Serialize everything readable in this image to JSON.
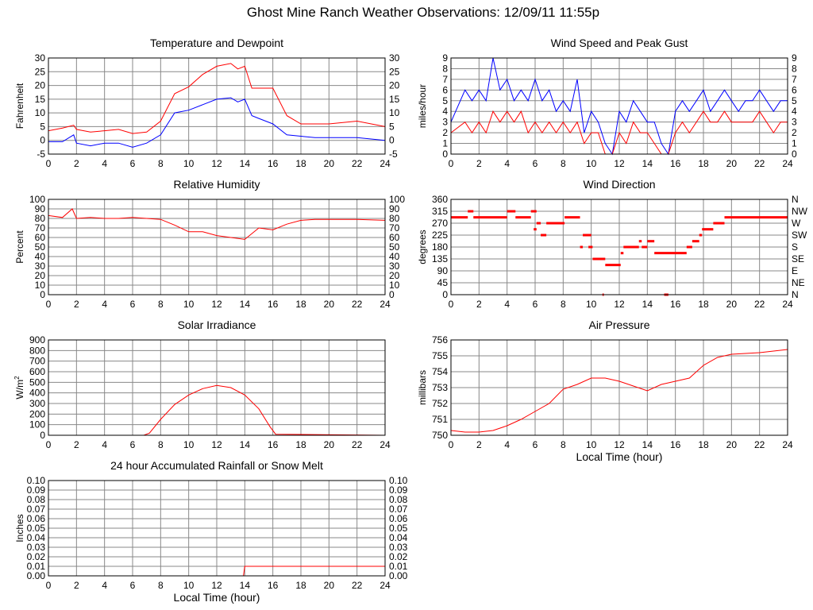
{
  "page": {
    "title": "Ghost Mine Ranch Weather Observations: 12/09/11 11:55p"
  },
  "colors": {
    "red": "#ff0000",
    "blue": "#0000ff",
    "grid": "#888888",
    "frame": "#000000"
  },
  "chart_data": [
    {
      "id": "temp",
      "type": "line",
      "title": "Temperature and Dewpoint",
      "xlabel": "",
      "ylabel": "Fahrenheit",
      "xlim": [
        0,
        24
      ],
      "ylim": [
        -5,
        30
      ],
      "xticks": [
        "0",
        "2",
        "4",
        "6",
        "8",
        "10",
        "12",
        "14",
        "16",
        "18",
        "20",
        "22",
        "24"
      ],
      "yticks": [
        "-5",
        "0",
        "5",
        "10",
        "15",
        "20",
        "25",
        "30"
      ],
      "yticks_right": [
        "-5",
        "0",
        "5",
        "10",
        "15",
        "20",
        "25",
        "30"
      ],
      "x": [
        0,
        1,
        1.8,
        2,
        3,
        4,
        5,
        6,
        7,
        8,
        9,
        10,
        11,
        12,
        13,
        13.5,
        14,
        14.5,
        15,
        16,
        17,
        18,
        19,
        20,
        22,
        24
      ],
      "series": [
        {
          "color": "red",
          "values": [
            3.5,
            4.5,
            5.5,
            4,
            3,
            3.5,
            4,
            2.5,
            3,
            7,
            17,
            19.5,
            24,
            27,
            28,
            26,
            27,
            19,
            19,
            19,
            9,
            6,
            6,
            6,
            7,
            5
          ]
        },
        {
          "color": "blue",
          "values": [
            -0.5,
            -0.5,
            2,
            -1,
            -2,
            -1,
            -1,
            -2.5,
            -1,
            2,
            10,
            11,
            13,
            15,
            15.5,
            14,
            15,
            9,
            8,
            6,
            2,
            1.5,
            1,
            1,
            1,
            0
          ]
        }
      ]
    },
    {
      "id": "wind",
      "type": "line",
      "title": "Wind Speed and Peak Gust",
      "xlabel": "",
      "ylabel": "miles/hour",
      "xlim": [
        0,
        24
      ],
      "ylim": [
        0,
        9
      ],
      "xticks": [
        "0",
        "2",
        "4",
        "6",
        "8",
        "10",
        "12",
        "14",
        "16",
        "18",
        "20",
        "22",
        "24"
      ],
      "yticks": [
        "0",
        "1",
        "2",
        "3",
        "4",
        "5",
        "6",
        "7",
        "8",
        "9"
      ],
      "yticks_right": [
        "0",
        "1",
        "2",
        "3",
        "4",
        "5",
        "6",
        "7",
        "8",
        "9"
      ],
      "x": [
        0,
        1,
        1.5,
        2,
        2.5,
        3,
        3.5,
        4,
        4.5,
        5,
        5.5,
        6,
        6.5,
        7,
        7.5,
        8,
        8.5,
        9,
        9.5,
        10,
        10.5,
        11,
        11.5,
        12,
        12.5,
        13,
        13.5,
        14,
        14.5,
        15,
        15.5,
        16,
        16.5,
        17,
        17.5,
        18,
        18.5,
        19,
        19.5,
        20,
        20.5,
        21,
        21.5,
        22,
        22.5,
        23,
        23.5,
        24
      ],
      "series": [
        {
          "color": "blue",
          "values": [
            3,
            6,
            5,
            6,
            5,
            9,
            6,
            7,
            5,
            6,
            5,
            7,
            5,
            6,
            4,
            5,
            4,
            7,
            2,
            4,
            3,
            1,
            0,
            4,
            3,
            5,
            4,
            3,
            3,
            1,
            0,
            4,
            5,
            4,
            5,
            6,
            4,
            5,
            6,
            5,
            4,
            5,
            5,
            6,
            5,
            4,
            5,
            5
          ]
        },
        {
          "color": "red",
          "values": [
            2,
            3,
            2,
            3,
            2,
            4,
            3,
            4,
            3,
            4,
            2,
            3,
            2,
            3,
            2,
            3,
            2,
            3,
            1,
            2,
            2,
            0,
            0,
            2,
            1,
            3,
            2,
            2,
            1,
            0,
            0,
            2,
            3,
            2,
            3,
            4,
            3,
            3,
            4,
            3,
            3,
            3,
            3,
            4,
            3,
            2,
            3,
            3
          ]
        }
      ]
    },
    {
      "id": "rh",
      "type": "line",
      "title": "Relative Humidity",
      "xlabel": "",
      "ylabel": "Percent",
      "xlim": [
        0,
        24
      ],
      "ylim": [
        0,
        100
      ],
      "xticks": [
        "0",
        "2",
        "4",
        "6",
        "8",
        "10",
        "12",
        "14",
        "16",
        "18",
        "20",
        "22",
        "24"
      ],
      "yticks": [
        "0",
        "10",
        "20",
        "30",
        "40",
        "50",
        "60",
        "70",
        "80",
        "90",
        "100"
      ],
      "yticks_right": [
        "0",
        "10",
        "20",
        "30",
        "40",
        "50",
        "60",
        "70",
        "80",
        "90",
        "100"
      ],
      "x": [
        0,
        1,
        1.7,
        2,
        3,
        4,
        5,
        6,
        7,
        8,
        9,
        10,
        11,
        12,
        13,
        14,
        15,
        16,
        17,
        18,
        19,
        20,
        22,
        24
      ],
      "series": [
        {
          "color": "red",
          "values": [
            83,
            81,
            90,
            80,
            81,
            80,
            80,
            81,
            80,
            79,
            73,
            66,
            66,
            62,
            60,
            58,
            70,
            68,
            74,
            78,
            79,
            79,
            79,
            78
          ]
        }
      ]
    },
    {
      "id": "dir",
      "type": "scatter",
      "title": "Wind Direction",
      "xlabel": "",
      "ylabel": "degrees",
      "xlim": [
        0,
        24
      ],
      "ylim": [
        0,
        360
      ],
      "xticks": [
        "0",
        "2",
        "4",
        "6",
        "8",
        "10",
        "12",
        "14",
        "16",
        "18",
        "20",
        "22",
        "24"
      ],
      "yticks": [
        "0",
        "45",
        "90",
        "135",
        "180",
        "225",
        "270",
        "315",
        "360"
      ],
      "yticks_right": [
        "N",
        "NE",
        "E",
        "SE",
        "S",
        "SW",
        "W",
        "NW",
        "N"
      ],
      "segments": [
        {
          "x0": 0,
          "x1": 1.2,
          "y": 292
        },
        {
          "x0": 1.2,
          "x1": 1.6,
          "y": 315
        },
        {
          "x0": 1.6,
          "x1": 4.0,
          "y": 292
        },
        {
          "x0": 4.0,
          "x1": 4.6,
          "y": 315
        },
        {
          "x0": 4.6,
          "x1": 5.7,
          "y": 292
        },
        {
          "x0": 5.7,
          "x1": 6.1,
          "y": 315
        },
        {
          "x0": 5.9,
          "x1": 6.1,
          "y": 247
        },
        {
          "x0": 6.1,
          "x1": 6.4,
          "y": 270
        },
        {
          "x0": 6.4,
          "x1": 6.8,
          "y": 225
        },
        {
          "x0": 6.8,
          "x1": 8.1,
          "y": 270
        },
        {
          "x0": 8.1,
          "x1": 9.2,
          "y": 292
        },
        {
          "x0": 9.2,
          "x1": 9.4,
          "y": 180
        },
        {
          "x0": 9.4,
          "x1": 10.0,
          "y": 225
        },
        {
          "x0": 9.8,
          "x1": 10.1,
          "y": 180
        },
        {
          "x0": 10.1,
          "x1": 11.0,
          "y": 135
        },
        {
          "x0": 10.8,
          "x1": 10.9,
          "y": 0
        },
        {
          "x0": 11.0,
          "x1": 12.1,
          "y": 112
        },
        {
          "x0": 12.1,
          "x1": 12.3,
          "y": 157
        },
        {
          "x0": 12.3,
          "x1": 13.4,
          "y": 180
        },
        {
          "x0": 13.4,
          "x1": 13.6,
          "y": 202
        },
        {
          "x0": 13.6,
          "x1": 14.0,
          "y": 180
        },
        {
          "x0": 14.0,
          "x1": 14.5,
          "y": 202
        },
        {
          "x0": 14.5,
          "x1": 16.8,
          "y": 157
        },
        {
          "x0": 15.2,
          "x1": 15.5,
          "y": 0
        },
        {
          "x0": 16.8,
          "x1": 17.2,
          "y": 180
        },
        {
          "x0": 17.2,
          "x1": 17.7,
          "y": 202
        },
        {
          "x0": 17.7,
          "x1": 17.9,
          "y": 225
        },
        {
          "x0": 17.9,
          "x1": 18.7,
          "y": 247
        },
        {
          "x0": 18.7,
          "x1": 19.5,
          "y": 270
        },
        {
          "x0": 19.5,
          "x1": 24.0,
          "y": 292
        }
      ]
    },
    {
      "id": "solar",
      "type": "line",
      "title": "Solar Irradiance",
      "xlabel": "",
      "ylabel": "W/m",
      "ylabel_sup": "2",
      "xlim": [
        0,
        24
      ],
      "ylim": [
        0,
        900
      ],
      "xticks": [
        "0",
        "2",
        "4",
        "6",
        "8",
        "10",
        "12",
        "14",
        "16",
        "18",
        "20",
        "22",
        "24"
      ],
      "yticks": [
        "0",
        "100",
        "200",
        "300",
        "400",
        "500",
        "600",
        "700",
        "800",
        "900"
      ],
      "x": [
        0,
        6.8,
        7.2,
        8,
        9,
        10,
        11,
        12,
        13,
        14,
        15,
        15.8,
        16.2,
        24
      ],
      "series": [
        {
          "color": "red",
          "values": [
            0,
            0,
            20,
            150,
            290,
            380,
            440,
            470,
            450,
            380,
            250,
            80,
            10,
            0
          ]
        }
      ]
    },
    {
      "id": "pressure",
      "type": "line",
      "title": "Air Pressure",
      "xlabel": "Local Time (hour)",
      "ylabel": "millibars",
      "xlim": [
        0,
        24
      ],
      "ylim": [
        750,
        756
      ],
      "xticks": [
        "0",
        "2",
        "4",
        "6",
        "8",
        "10",
        "12",
        "14",
        "16",
        "18",
        "20",
        "22",
        "24"
      ],
      "yticks": [
        "750",
        "751",
        "752",
        "753",
        "754",
        "755",
        "756"
      ],
      "x": [
        0,
        1,
        2,
        3,
        4,
        5,
        6,
        7,
        8,
        9,
        10,
        11,
        12,
        13,
        14,
        15,
        16,
        17,
        18,
        19,
        20,
        22,
        23,
        24
      ],
      "series": [
        {
          "color": "red",
          "values": [
            750.3,
            750.2,
            750.2,
            750.3,
            750.6,
            751.0,
            751.5,
            752.0,
            752.9,
            753.2,
            753.6,
            753.6,
            753.4,
            753.1,
            752.8,
            753.2,
            753.4,
            753.6,
            754.4,
            754.9,
            755.1,
            755.2,
            755.3,
            755.4
          ]
        }
      ]
    },
    {
      "id": "rain",
      "type": "line",
      "title": "24 hour Accumulated Rainfall or Snow Melt",
      "xlabel": "Local Time (hour)",
      "ylabel": "Inches",
      "xlim": [
        0,
        24
      ],
      "ylim": [
        0,
        0.1
      ],
      "xticks": [
        "0",
        "2",
        "4",
        "6",
        "8",
        "10",
        "12",
        "14",
        "16",
        "18",
        "20",
        "22",
        "24"
      ],
      "yticks": [
        "0.00",
        "0.01",
        "0.02",
        "0.03",
        "0.04",
        "0.05",
        "0.06",
        "0.07",
        "0.08",
        "0.09",
        "0.10"
      ],
      "yticks_right": [
        "0.00",
        "0.01",
        "0.02",
        "0.03",
        "0.04",
        "0.05",
        "0.06",
        "0.07",
        "0.08",
        "0.09",
        "0.10"
      ],
      "x": [
        0,
        13.9,
        14.0,
        24
      ],
      "series": [
        {
          "color": "red",
          "values": [
            0,
            0,
            0.01,
            0.01
          ]
        }
      ]
    }
  ]
}
